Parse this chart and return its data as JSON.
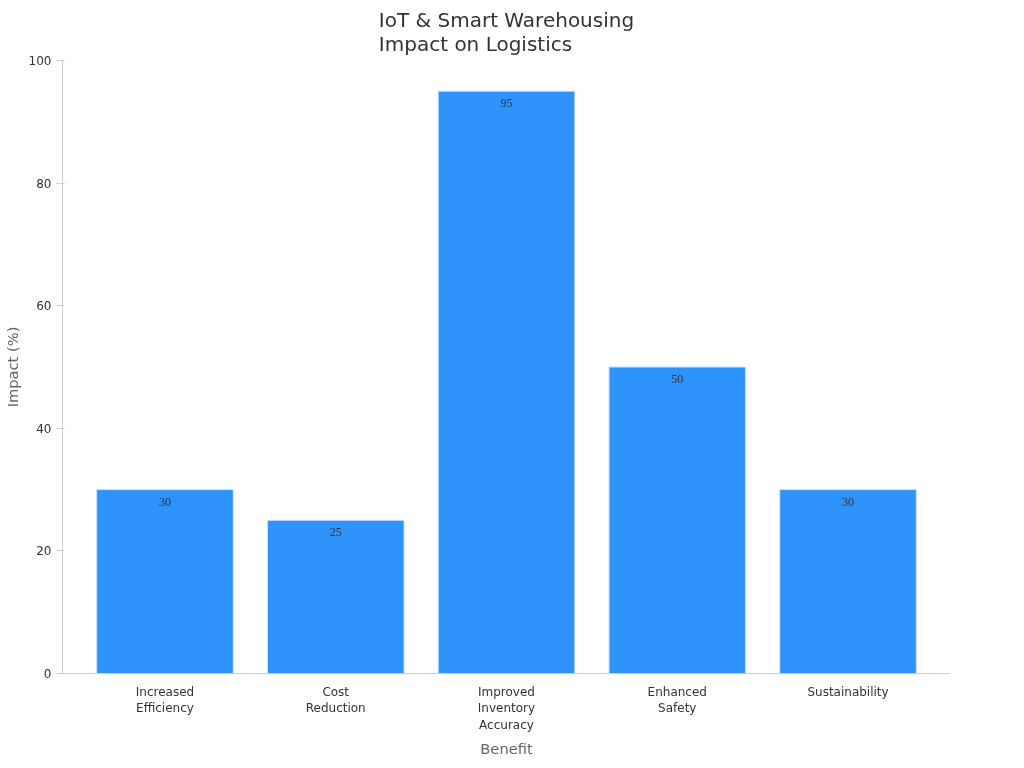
{
  "chart_data": {
    "type": "bar",
    "title": "IoT & Smart Warehousing\nImpact on Logistics",
    "xlabel": "Benefit",
    "ylabel": "Impact (%)",
    "categories": [
      "Increased Efficiency",
      "Cost Reduction",
      "Improved Inventory Accuracy",
      "Enhanced Safety",
      "Sustainability"
    ],
    "values": [
      30,
      25,
      95,
      50,
      30
    ],
    "color": "#2e93fa",
    "ylim": [
      0,
      100
    ],
    "yticks": [
      0,
      20,
      40,
      60,
      80,
      100
    ],
    "grid": false,
    "data_labels": true
  }
}
